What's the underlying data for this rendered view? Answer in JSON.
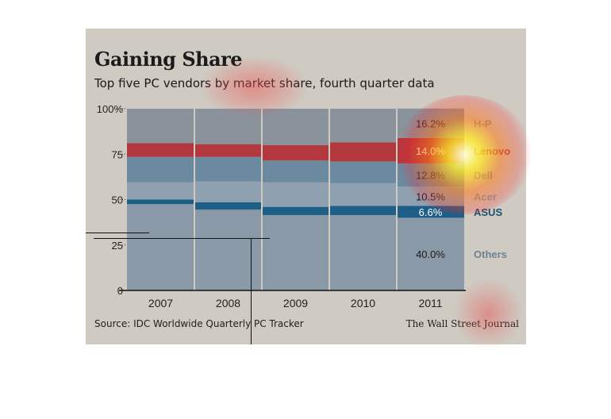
{
  "header": {
    "title": "Gaining Share",
    "subtitle": "Top five PC vendors by market share, fourth quarter data"
  },
  "footer": {
    "source": "Source: IDC Worldwide Quarterly PC Tracker",
    "credit": "The Wall Street Journal"
  },
  "colors": {
    "card_bg": "#cfcbc2",
    "hp": "#8a929c",
    "lenovo": "#b2383d",
    "dell": "#6b8aa0",
    "acer": "#8fa1b0",
    "asus": "#1d5f86",
    "others": "#8a99a7"
  },
  "chart_data": {
    "type": "bar",
    "stacked": true,
    "title": "Gaining Share",
    "subtitle": "Top five PC vendors by market share, fourth quarter data",
    "categories": [
      "2007",
      "2008",
      "2009",
      "2010",
      "2011"
    ],
    "ylim": [
      0,
      100
    ],
    "yticks": [
      {
        "value": 0,
        "label": "0"
      },
      {
        "value": 25,
        "label": "25"
      },
      {
        "value": 50,
        "label": "50"
      },
      {
        "value": 75,
        "label": "75"
      },
      {
        "value": 100,
        "label": "100%"
      }
    ],
    "series": [
      {
        "name": "Others",
        "key": "others",
        "values": [
          47.5,
          44.5,
          41.5,
          41.5,
          40.0
        ]
      },
      {
        "name": "ASUS",
        "key": "asus",
        "values": [
          2.5,
          4.0,
          4.5,
          5.0,
          6.6
        ]
      },
      {
        "name": "Acer",
        "key": "acer",
        "values": [
          9.5,
          11.5,
          13.5,
          12.5,
          10.5
        ]
      },
      {
        "name": "Dell",
        "key": "dell",
        "values": [
          14.0,
          13.5,
          12.0,
          12.0,
          12.8
        ]
      },
      {
        "name": "Lenovo",
        "key": "lenovo",
        "values": [
          7.5,
          7.0,
          8.5,
          10.5,
          14.0
        ]
      },
      {
        "name": "H-P",
        "key": "hp",
        "values": [
          19.0,
          19.5,
          20.0,
          18.5,
          16.2
        ]
      }
    ],
    "data_labels_2011": [
      {
        "key": "hp",
        "label": "16.2%"
      },
      {
        "key": "lenovo",
        "label": "14.0%"
      },
      {
        "key": "dell",
        "label": "12.8%"
      },
      {
        "key": "acer",
        "label": "10.5%"
      },
      {
        "key": "asus",
        "label": "6.6%"
      },
      {
        "key": "others",
        "label": "40.0%"
      }
    ],
    "legend_placement": "right"
  }
}
